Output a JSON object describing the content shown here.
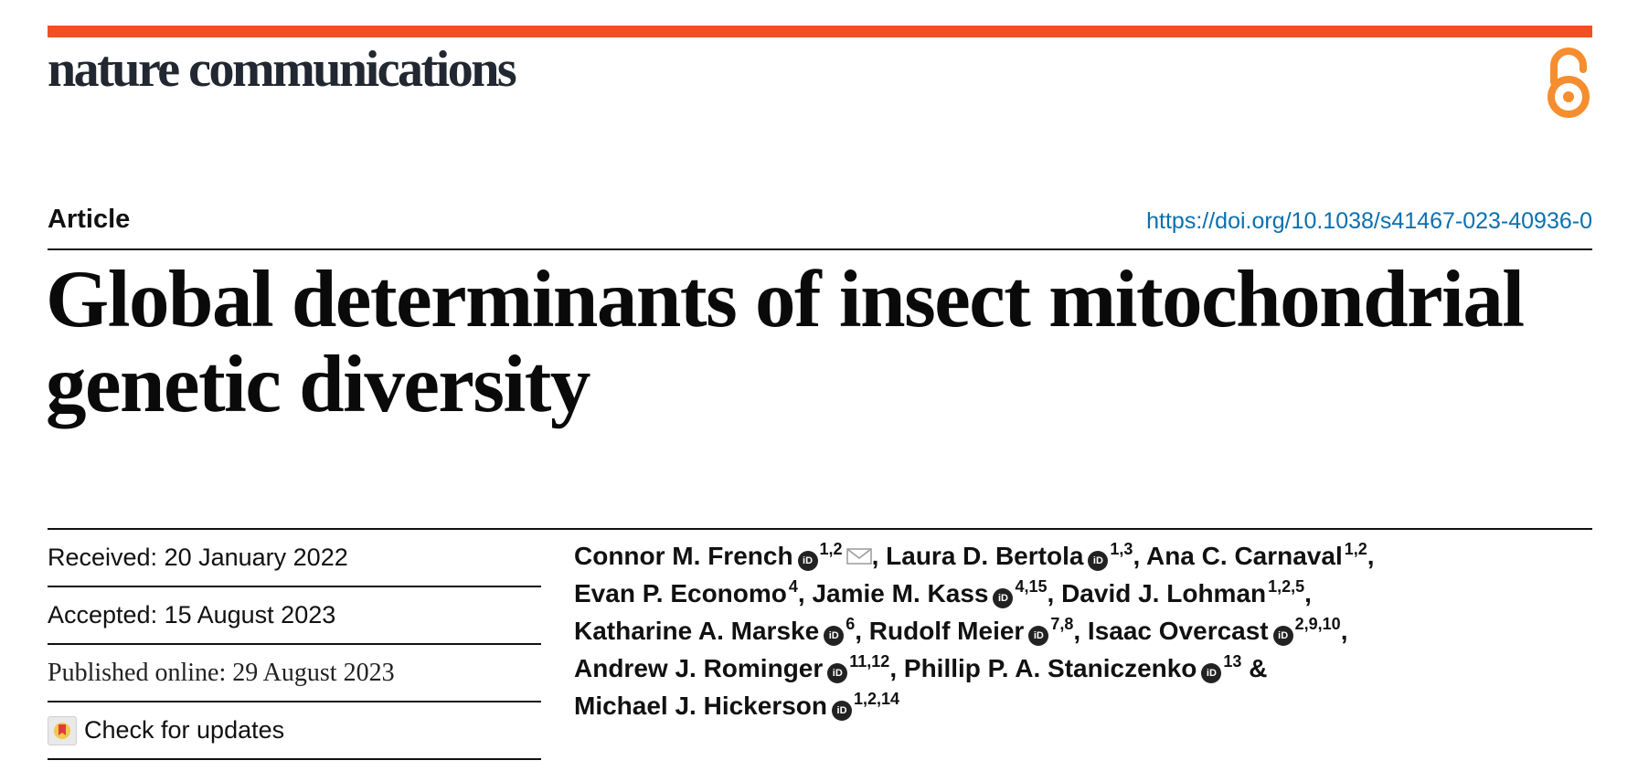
{
  "journal": {
    "name": "nature communications",
    "brand_color": "#f25022",
    "text_color": "#222831",
    "open_access_icon": "open-access-lock-icon",
    "oa_color": "#f68d2e"
  },
  "article": {
    "type": "Article",
    "doi": "https://doi.org/10.1038/s41467-023-40936-0",
    "doi_color": "#0b70b0",
    "title_line1": "Global determinants of insect mitochondrial",
    "title_line2": "genetic diversity"
  },
  "dates": {
    "received": "Received: 20 January 2022",
    "accepted": "Accepted: 15 August 2023",
    "published": "Published online: 29 August 2023",
    "check_updates": "Check for updates"
  },
  "authors": [
    {
      "name": "Connor M. French",
      "orcid": true,
      "aff": "1,2",
      "corresponding": true,
      "sep": ", "
    },
    {
      "name": "Laura D. Bertola",
      "orcid": true,
      "aff": "1,3",
      "sep": ", "
    },
    {
      "name": "Ana C. Carnaval",
      "orcid": false,
      "aff": "1,2",
      "sep": ", "
    },
    {
      "name": "Evan P. Economo",
      "orcid": false,
      "aff": "4",
      "sep": ", "
    },
    {
      "name": "Jamie M. Kass",
      "orcid": true,
      "aff": "4,15",
      "sep": ", "
    },
    {
      "name": "David J. Lohman",
      "orcid": false,
      "aff": "1,2,5",
      "sep": ", "
    },
    {
      "name": "Katharine A. Marske",
      "orcid": true,
      "aff": "6",
      "sep": ", "
    },
    {
      "name": "Rudolf Meier",
      "orcid": true,
      "aff": "7,8",
      "sep": ", "
    },
    {
      "name": "Isaac Overcast",
      "orcid": true,
      "aff": "2,9,10",
      "sep": ", "
    },
    {
      "name": "Andrew J. Rominger",
      "orcid": true,
      "aff": "11,12",
      "sep": ", "
    },
    {
      "name": "Phillip P. A. Staniczenko",
      "orcid": true,
      "aff": "13",
      "sep": " & "
    },
    {
      "name": "Michael J. Hickerson",
      "orcid": true,
      "aff": "1,2,14",
      "sep": ""
    }
  ],
  "icons": {
    "orcid": "orcid-icon",
    "orcid_text": "iD",
    "mail": "mail-icon",
    "updates": "check-updates-icon"
  }
}
